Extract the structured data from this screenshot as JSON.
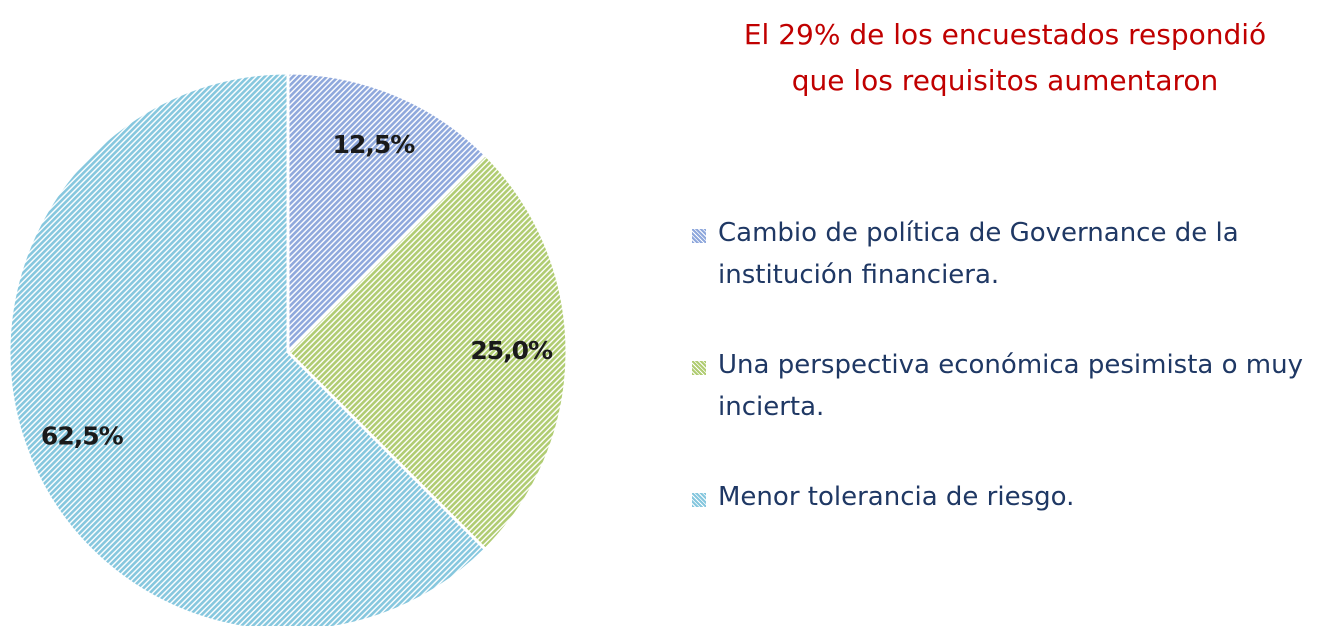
{
  "chart_data": {
    "type": "pie",
    "title": "El 29%  de los encuestados respondió que los requisitos aumentaron",
    "categories": [
      "Cambio de política de Governance de la institución financiera.",
      "Una perspectiva económica pesimista o muy incierta.",
      "Menor tolerancia de riesgo."
    ],
    "values": [
      12.5,
      25.0,
      62.5
    ],
    "value_labels": [
      "12,5%",
      "25,0%",
      "62,5%"
    ],
    "colors": [
      "#8fa8dc",
      "#b0cc72",
      "#86c7de"
    ],
    "legend": "right"
  }
}
